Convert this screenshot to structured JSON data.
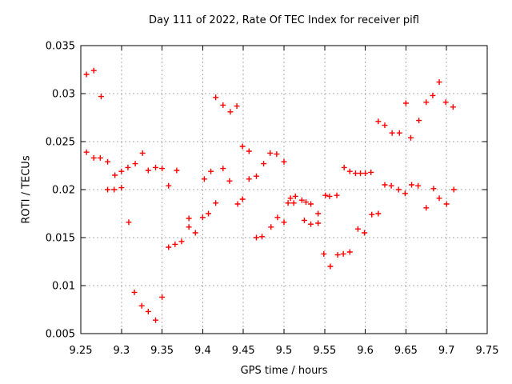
{
  "chart_data": {
    "type": "scatter",
    "title": "Day 111 of 2022, Rate Of TEC Index for receiver pifl",
    "xlabel": "GPS time / hours",
    "ylabel": "ROTI / TECUs",
    "xlim": [
      9.25,
      9.75
    ],
    "ylim": [
      0.005,
      0.035
    ],
    "x_ticks": [
      9.25,
      9.3,
      9.35,
      9.4,
      9.45,
      9.5,
      9.55,
      9.6,
      9.65,
      9.7,
      9.75
    ],
    "x_tick_labels": [
      "9.25",
      "9.3",
      "9.35",
      "9.4",
      "9.45",
      "9.5",
      "9.55",
      "9.6",
      "9.65",
      "9.7",
      "9.75"
    ],
    "y_ticks": [
      0.005,
      0.01,
      0.015,
      0.02,
      0.025,
      0.03,
      0.035
    ],
    "y_tick_labels": [
      "0.005",
      "0.01",
      "0.015",
      "0.02",
      "0.025",
      "0.03",
      "0.035"
    ],
    "grid": true,
    "legend_position": "none",
    "marker": {
      "shape": "plus",
      "color": "#ff0000",
      "size": 7
    },
    "grid_color": "#a8a8a8",
    "border_color": "#000000",
    "series": [
      {
        "name": "ROTI",
        "points": [
          [
            9.257,
            0.032
          ],
          [
            9.266,
            0.0324
          ],
          [
            9.275,
            0.0297
          ],
          [
            9.257,
            0.0239
          ],
          [
            9.266,
            0.0233
          ],
          [
            9.274,
            0.0233
          ],
          [
            9.283,
            0.0229
          ],
          [
            9.292,
            0.0215
          ],
          [
            9.3,
            0.0219
          ],
          [
            9.308,
            0.0223
          ],
          [
            9.317,
            0.0227
          ],
          [
            9.283,
            0.02
          ],
          [
            9.291,
            0.02
          ],
          [
            9.3,
            0.0202
          ],
          [
            9.309,
            0.0166
          ],
          [
            9.316,
            0.0093
          ],
          [
            9.325,
            0.0079
          ],
          [
            9.333,
            0.0073
          ],
          [
            9.342,
            0.0064
          ],
          [
            9.35,
            0.0088
          ],
          [
            9.326,
            0.0238
          ],
          [
            9.333,
            0.022
          ],
          [
            9.342,
            0.0223
          ],
          [
            9.35,
            0.0222
          ],
          [
            9.358,
            0.0204
          ],
          [
            9.368,
            0.022
          ],
          [
            9.358,
            0.014
          ],
          [
            9.366,
            0.0143
          ],
          [
            9.374,
            0.0146
          ],
          [
            9.383,
            0.017
          ],
          [
            9.383,
            0.0161
          ],
          [
            9.391,
            0.0155
          ],
          [
            9.4,
            0.0171
          ],
          [
            9.407,
            0.0175
          ],
          [
            9.402,
            0.0211
          ],
          [
            9.41,
            0.0219
          ],
          [
            9.416,
            0.0296
          ],
          [
            9.425,
            0.0288
          ],
          [
            9.434,
            0.0281
          ],
          [
            9.442,
            0.0287
          ],
          [
            9.425,
            0.0222
          ],
          [
            9.433,
            0.0209
          ],
          [
            9.416,
            0.0186
          ],
          [
            9.443,
            0.0185
          ],
          [
            9.449,
            0.019
          ],
          [
            9.449,
            0.0245
          ],
          [
            9.457,
            0.024
          ],
          [
            9.457,
            0.0211
          ],
          [
            9.466,
            0.0214
          ],
          [
            9.475,
            0.0227
          ],
          [
            9.483,
            0.0238
          ],
          [
            9.491,
            0.0237
          ],
          [
            9.5,
            0.0229
          ],
          [
            9.466,
            0.015
          ],
          [
            9.473,
            0.0151
          ],
          [
            9.484,
            0.0161
          ],
          [
            9.492,
            0.0171
          ],
          [
            9.5,
            0.0166
          ],
          [
            9.505,
            0.0186
          ],
          [
            9.508,
            0.0191
          ],
          [
            9.512,
            0.0186
          ],
          [
            9.514,
            0.0193
          ],
          [
            9.522,
            0.0189
          ],
          [
            9.527,
            0.0187
          ],
          [
            9.533,
            0.0185
          ],
          [
            9.525,
            0.0168
          ],
          [
            9.533,
            0.0164
          ],
          [
            9.542,
            0.0165
          ],
          [
            9.542,
            0.0175
          ],
          [
            9.551,
            0.0194
          ],
          [
            9.556,
            0.0193
          ],
          [
            9.565,
            0.0194
          ],
          [
            9.574,
            0.0223
          ],
          [
            9.581,
            0.0219
          ],
          [
            9.588,
            0.0217
          ],
          [
            9.594,
            0.0217
          ],
          [
            9.6,
            0.0217
          ],
          [
            9.607,
            0.0218
          ],
          [
            9.549,
            0.0133
          ],
          [
            9.557,
            0.012
          ],
          [
            9.566,
            0.0132
          ],
          [
            9.573,
            0.0133
          ],
          [
            9.581,
            0.0135
          ],
          [
            9.591,
            0.0159
          ],
          [
            9.599,
            0.0155
          ],
          [
            9.608,
            0.0174
          ],
          [
            9.616,
            0.0175
          ],
          [
            9.616,
            0.0271
          ],
          [
            9.624,
            0.0267
          ],
          [
            9.633,
            0.0259
          ],
          [
            9.642,
            0.0259
          ],
          [
            9.656,
            0.0254
          ],
          [
            9.65,
            0.029
          ],
          [
            9.666,
            0.0272
          ],
          [
            9.675,
            0.0291
          ],
          [
            9.683,
            0.0298
          ],
          [
            9.691,
            0.0312
          ],
          [
            9.699,
            0.0291
          ],
          [
            9.708,
            0.0286
          ],
          [
            9.624,
            0.0205
          ],
          [
            9.632,
            0.0204
          ],
          [
            9.641,
            0.02
          ],
          [
            9.649,
            0.0196
          ],
          [
            9.657,
            0.0205
          ],
          [
            9.665,
            0.0204
          ],
          [
            9.675,
            0.0181
          ],
          [
            9.684,
            0.0201
          ],
          [
            9.691,
            0.0191
          ],
          [
            9.7,
            0.0185
          ],
          [
            9.709,
            0.02
          ]
        ]
      }
    ]
  }
}
